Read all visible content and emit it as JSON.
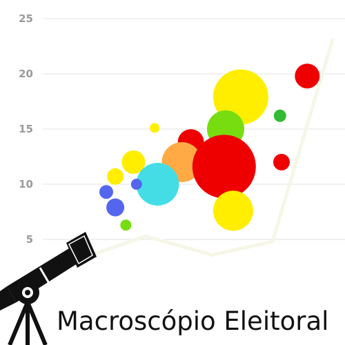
{
  "brand": {
    "title": "Macroscópio Eleitoral"
  },
  "chart_data": {
    "type": "scatter",
    "title": "",
    "xlabel": "",
    "ylabel": "",
    "ylim": [
      3,
      26
    ],
    "xlim": [
      0,
      10
    ],
    "grid": true,
    "yticks": [
      5,
      10,
      15,
      20,
      25
    ],
    "ytick_labels": [
      "5",
      "10",
      "15",
      "20",
      "25"
    ],
    "bubbles": [
      {
        "x": 6.55,
        "y": 17.9,
        "size": 40,
        "color": "#ffee00"
      },
      {
        "x": 8.75,
        "y": 19.8,
        "size": 18,
        "color": "#ee0000"
      },
      {
        "x": 7.85,
        "y": 16.2,
        "size": 9,
        "color": "#33bb33"
      },
      {
        "x": 6.05,
        "y": 15.0,
        "size": 27,
        "color": "#77dd11"
      },
      {
        "x": 3.7,
        "y": 15.1,
        "size": 7,
        "color": "#ffee00"
      },
      {
        "x": 4.9,
        "y": 13.8,
        "size": 19,
        "color": "#ee0000"
      },
      {
        "x": 4.6,
        "y": 12.0,
        "size": 29,
        "color": "#ffaa44"
      },
      {
        "x": 6.0,
        "y": 11.6,
        "size": 46,
        "color": "#ee0000"
      },
      {
        "x": 7.9,
        "y": 12.0,
        "size": 12,
        "color": "#ee0000"
      },
      {
        "x": 3.0,
        "y": 12.0,
        "size": 17,
        "color": "#ffee00"
      },
      {
        "x": 2.4,
        "y": 10.7,
        "size": 12,
        "color": "#ffee00"
      },
      {
        "x": 3.8,
        "y": 10.0,
        "size": 31,
        "color": "#44dde6"
      },
      {
        "x": 3.1,
        "y": 10.0,
        "size": 8,
        "color": "#5566ee"
      },
      {
        "x": 2.1,
        "y": 9.3,
        "size": 10,
        "color": "#5566ee"
      },
      {
        "x": 2.4,
        "y": 7.9,
        "size": 13,
        "color": "#5566ee"
      },
      {
        "x": 6.3,
        "y": 7.6,
        "size": 29,
        "color": "#ffee00"
      },
      {
        "x": 2.75,
        "y": 6.3,
        "size": 8,
        "color": "#77dd11"
      }
    ],
    "faint_line": {
      "color": "#f6f6e8",
      "x": [
        1.2,
        3.4,
        5.6,
        7.6,
        9.6
      ],
      "y": [
        3.2,
        5.3,
        3.6,
        4.8,
        23.2
      ]
    }
  }
}
